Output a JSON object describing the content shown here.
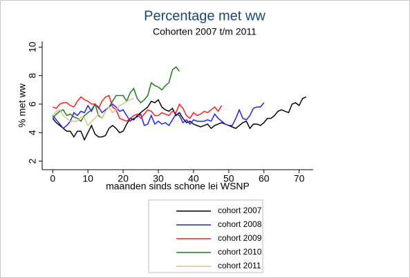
{
  "chart_data": {
    "type": "line",
    "title": "Percentage met ww",
    "subtitle": "Cohorten 2007 t/m 2011",
    "x_label": "maanden sinds schone lei WSNP",
    "y_label": "% met ww",
    "x": [
      0,
      1,
      2,
      3,
      4,
      5,
      6,
      7,
      8,
      9,
      10,
      11,
      12,
      13,
      14,
      15,
      16,
      17,
      18,
      19,
      20,
      21,
      22,
      23,
      24,
      25,
      26,
      27,
      28,
      29,
      30,
      31,
      32,
      33,
      34,
      35,
      36,
      37,
      38,
      39,
      40,
      41,
      42,
      43,
      44,
      45,
      46,
      47,
      48,
      49,
      50,
      51,
      52,
      53,
      54,
      55,
      56,
      57,
      58,
      59,
      60,
      61,
      62,
      63,
      64,
      65,
      66,
      67,
      68,
      69,
      70,
      71,
      72
    ],
    "series": [
      {
        "name": "cohort 2007",
        "color": "#000000",
        "values": [
          5.0,
          4.7,
          4.5,
          4.3,
          4.1,
          4.1,
          3.7,
          4.1,
          4.1,
          3.5,
          4.0,
          4.5,
          3.9,
          3.7,
          3.7,
          3.8,
          4.3,
          4.5,
          4.3,
          4.0,
          4.1,
          4.6,
          5.0,
          4.9,
          5.2,
          5.4,
          5.6,
          5.8,
          6.2,
          6.1,
          6.3,
          5.8,
          5.6,
          5.5,
          5.7,
          5.2,
          5.4,
          5.0,
          4.7,
          4.8,
          4.6,
          4.5,
          4.4,
          4.5,
          4.6,
          4.3,
          4.5,
          4.6,
          4.7,
          4.6,
          4.5,
          4.4,
          4.3,
          4.5,
          4.7,
          4.8,
          4.3,
          4.6,
          4.6,
          4.5,
          4.7,
          5.0,
          5.0,
          5.2,
          5.5,
          5.6,
          5.5,
          5.4,
          6.0,
          6.1,
          5.9,
          6.4,
          6.5
        ]
      },
      {
        "name": "cohort 2008",
        "color": "#1f1fff",
        "values": [
          5.2,
          4.9,
          4.6,
          4.3,
          4.5,
          4.8,
          5.4,
          5.2,
          5.5,
          5.4,
          5.9,
          5.5,
          6.0,
          5.8,
          5.4,
          5.6,
          5.8,
          6.0,
          5.8,
          5.5,
          5.6,
          5.2,
          4.8,
          5.0,
          5.1,
          5.3,
          4.5,
          4.6,
          5.2,
          4.6,
          4.8,
          4.6,
          4.7,
          4.5,
          4.9,
          5.3,
          5.2,
          4.7,
          4.9,
          4.6,
          4.9,
          4.8,
          4.8,
          4.8,
          4.9,
          4.8,
          5.3,
          5.0,
          4.8,
          4.6,
          4.5,
          4.5,
          5.0,
          5.6,
          5.0,
          4.9,
          5.2,
          5.7,
          5.8,
          5.8,
          6.1,
          null,
          null,
          null,
          null,
          null,
          null,
          null,
          null,
          null,
          null,
          null,
          null
        ]
      },
      {
        "name": "cohort 2009",
        "color": "#ff2020",
        "values": [
          5.8,
          5.7,
          6.0,
          6.1,
          6.1,
          5.9,
          5.8,
          6.2,
          6.5,
          6.3,
          6.2,
          6.0,
          6.0,
          5.7,
          6.2,
          6.5,
          6.6,
          5.8,
          5.6,
          5.0,
          4.9,
          4.8,
          5.0,
          5.2,
          5.3,
          5.0,
          5.3,
          5.6,
          5.5,
          5.2,
          5.2,
          5.4,
          5.3,
          5.2,
          5.5,
          5.4,
          6.0,
          5.7,
          5.2,
          5.0,
          5.4,
          5.2,
          5.3,
          5.5,
          5.4,
          5.6,
          5.8,
          5.5,
          5.9,
          null,
          null,
          null,
          null,
          null,
          null,
          null,
          null,
          null,
          null,
          null,
          null,
          null,
          null,
          null,
          null,
          null,
          null,
          null,
          null,
          null,
          null,
          null,
          null
        ]
      },
      {
        "name": "cohort 2010",
        "color": "#1e7b1e",
        "values": [
          5.0,
          5.3,
          5.5,
          5.6,
          5.2,
          5.3,
          5.1,
          5.0,
          4.8,
          5.2,
          5.4,
          5.6,
          6.0,
          5.2,
          5.0,
          5.5,
          5.8,
          6.2,
          6.6,
          6.6,
          6.6,
          6.2,
          6.8,
          7.1,
          6.4,
          6.1,
          6.3,
          6.6,
          7.5,
          7.3,
          7.2,
          7.0,
          7.3,
          7.5,
          8.4,
          8.6,
          8.3,
          null,
          null,
          null,
          null,
          null,
          null,
          null,
          null,
          null,
          null,
          null,
          null,
          null,
          null,
          null,
          null,
          null,
          null,
          null,
          null,
          null,
          null,
          null,
          null,
          null,
          null,
          null,
          null,
          null,
          null,
          null,
          null,
          null,
          null,
          null,
          null
        ]
      },
      {
        "name": "cohort 2011",
        "color": "#d8c48a",
        "values": [
          5.2,
          5.5,
          5.6,
          5.2,
          5.0,
          4.8,
          4.8,
          4.8,
          5.1,
          5.0,
          4.5,
          4.8,
          5.0,
          5.3,
          5.0,
          5.5,
          5.8,
          5.4,
          5.6,
          5.9,
          6.0,
          6.2,
          6.3,
          6.4,
          null,
          null,
          null,
          null,
          null,
          null,
          null,
          null,
          null,
          null,
          null,
          null,
          null,
          null,
          null,
          null,
          null,
          null,
          null,
          null,
          null,
          null,
          null,
          null,
          null,
          null,
          null,
          null,
          null,
          null,
          null,
          null,
          null,
          null,
          null,
          null,
          null,
          null,
          null,
          null,
          null,
          null,
          null,
          null,
          null,
          null,
          null,
          null,
          null
        ]
      }
    ],
    "xlim": [
      -3,
      74
    ],
    "ylim": [
      1.4,
      10.4
    ],
    "xticks": [
      0,
      10,
      20,
      30,
      40,
      50,
      60,
      70
    ],
    "yticks": [
      2,
      4,
      6,
      8,
      10
    ],
    "grid": false,
    "legend": "bottom"
  }
}
